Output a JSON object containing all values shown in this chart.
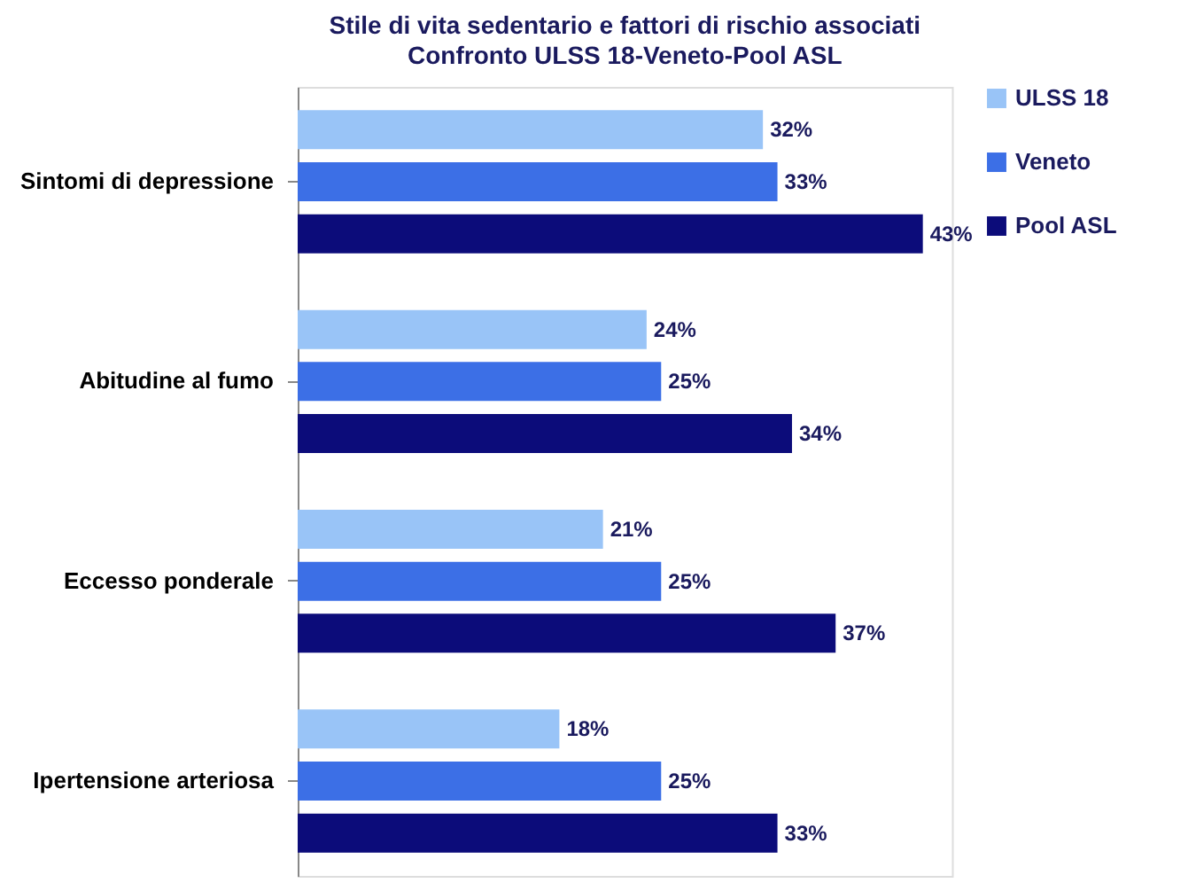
{
  "chart_data": {
    "type": "bar",
    "orientation": "horizontal",
    "title": "Stile di vita sedentario e fattori di rischio associati",
    "subtitle": "Confronto ULSS 18-Veneto-Pool ASL",
    "categories": [
      "Sintomi di depressione",
      "Abitudine al fumo",
      "Eccesso ponderale",
      "Ipertensione arteriosa"
    ],
    "series": [
      {
        "name": "ULSS 18",
        "color": "#99c4f7",
        "values": [
          32,
          24,
          21,
          18
        ],
        "value_labels": [
          "32%",
          "24%",
          "21%",
          "18%"
        ]
      },
      {
        "name": "Veneto",
        "color": "#3c6fe6",
        "values": [
          33,
          25,
          25,
          25
        ],
        "value_labels": [
          "33%",
          "25%",
          "25%",
          "25%"
        ]
      },
      {
        "name": "Pool ASL",
        "color": "#0c0c7a",
        "values": [
          43,
          34,
          37,
          33
        ],
        "value_labels": [
          "43%",
          "34%",
          "37%",
          "33%"
        ]
      }
    ],
    "legend": "right"
  }
}
